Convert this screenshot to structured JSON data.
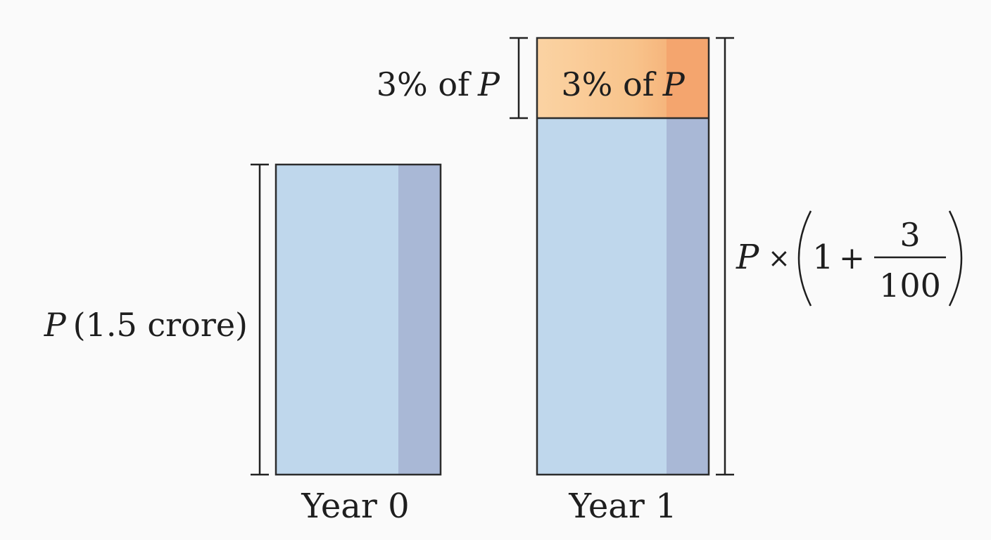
{
  "colors": {
    "bar_fill": "#bfd7ec",
    "bar_shade": "#a9b8d6",
    "increment_fill": "#f9c68e",
    "increment_shade": "#f4a56e",
    "outline": "#2c2c2c",
    "background": "#fafafa"
  },
  "bars": [
    {
      "category": "Year 0",
      "bracket_symbol": "P",
      "bracket_note": "(1.5 crore)"
    },
    {
      "category": "Year 1",
      "increment_symbol_prefix": "3% of",
      "increment_symbol": "P",
      "increment_outer_prefix": "3% of",
      "increment_outer_symbol": "P",
      "total_symbol": "P",
      "total_times": "×",
      "total_one": "1",
      "total_plus": "+",
      "total_numerator": "3",
      "total_denominator": "100"
    }
  ]
}
